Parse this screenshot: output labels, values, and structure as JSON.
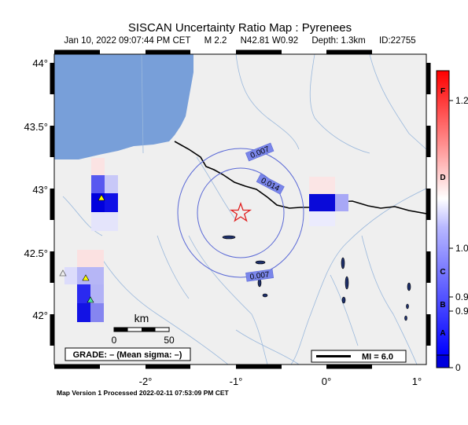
{
  "title": "SISCAN Uncertainty Ratio Map : Pyrenees",
  "subtitle": {
    "datetime": "Jan 10, 2022 09:07:44 PM CET",
    "magnitude": "M 2.2",
    "location": "N42.81 W0.92",
    "depth": "Depth: 1.3km",
    "id": "ID:22755"
  },
  "axes": {
    "x_ticks": [
      "-2°",
      "-1°",
      "0°",
      "1°"
    ],
    "y_ticks": [
      "44°",
      "43.5°",
      "43°",
      "42.5°",
      "42°"
    ]
  },
  "contours": {
    "outer_label": "0.007",
    "inner_label": "0.014",
    "lower_label": "0.007"
  },
  "scale_bar": {
    "unit": "km",
    "min_label": "0",
    "max_label": "50"
  },
  "grade_box": "GRADE: – (Mean sigma: –)",
  "mi_box": "MI = 6.0",
  "colorbar": {
    "letters": [
      "F",
      "D",
      "C",
      "B",
      "A"
    ],
    "values": [
      "1.2",
      "1.0",
      "0.9",
      "0.9",
      "0"
    ]
  },
  "footer": "Map Version 1 Processed 2022-02-11 07:53:09 PM CET",
  "colors": {
    "sea": "#789fd9",
    "land": "#efefef",
    "border": "#000000",
    "rivers": "#9ab8dc",
    "contour": "#5a69d6",
    "epicenter": "#e02020",
    "station": "#ffff00",
    "station_alt": "#4fe09a"
  }
}
